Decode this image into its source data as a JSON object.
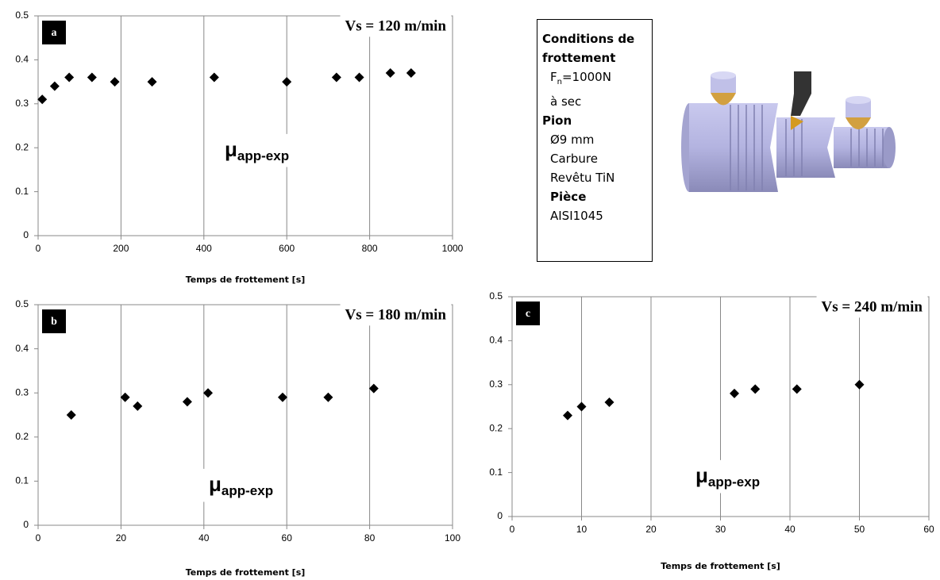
{
  "chart_data": [
    {
      "type": "scatter",
      "panel_label": "a",
      "annotation": "Vs = 120 m/min",
      "mu_symbol": "μ",
      "mu_subscript": "app-exp",
      "x_label": "Temps de frottement [s]",
      "x": [
        10,
        40,
        75,
        130,
        185,
        275,
        425,
        600,
        720,
        775,
        850,
        900
      ],
      "values": [
        0.31,
        0.34,
        0.36,
        0.36,
        0.35,
        0.35,
        0.36,
        0.35,
        0.36,
        0.36,
        0.37,
        0.37
      ],
      "color": "#000000",
      "xlim": [
        0,
        1000
      ],
      "xticks": [
        0,
        200,
        400,
        600,
        800,
        1000
      ],
      "ylim": [
        0,
        0.5
      ],
      "yticks": [
        0,
        0.1,
        0.2,
        0.3,
        0.4,
        0.5
      ],
      "grid": "x"
    },
    {
      "type": "scatter",
      "panel_label": "b",
      "annotation": "Vs = 180 m/min",
      "mu_symbol": "μ",
      "mu_subscript": "app-exp",
      "x_label": "Temps de frottement [s]",
      "x": [
        8,
        21,
        24,
        36,
        41,
        59,
        70,
        81
      ],
      "values": [
        0.25,
        0.29,
        0.27,
        0.28,
        0.3,
        0.29,
        0.29,
        0.31
      ],
      "color": "#000000",
      "xlim": [
        0,
        100
      ],
      "xticks": [
        0,
        20,
        40,
        60,
        80,
        100
      ],
      "ylim": [
        0,
        0.5
      ],
      "yticks": [
        0,
        0.1,
        0.2,
        0.3,
        0.4,
        0.5
      ],
      "grid": "x"
    },
    {
      "type": "scatter",
      "panel_label": "c",
      "annotation": "Vs = 240 m/min",
      "mu_symbol": "μ",
      "mu_subscript": "app-exp",
      "x_label": "Temps de frottement [s]",
      "x": [
        8,
        10,
        14,
        32,
        35,
        41,
        50
      ],
      "values": [
        0.23,
        0.25,
        0.26,
        0.28,
        0.29,
        0.29,
        0.3
      ],
      "color": "#000000",
      "xlim": [
        0,
        60
      ],
      "xticks": [
        0,
        10,
        20,
        30,
        40,
        50,
        60
      ],
      "ylim": [
        0,
        0.5
      ],
      "yticks": [
        0,
        0.1,
        0.2,
        0.3,
        0.4,
        0.5
      ],
      "grid": "x"
    }
  ],
  "conditions": {
    "heading1": "Conditions de frottement",
    "force_symbol": "F",
    "force_subscript": "n",
    "force_value": "=1000N",
    "items1": [
      "à sec"
    ],
    "heading2": "Pion",
    "items2": [
      "Ø9 mm",
      "Carbure",
      "Revêtu TiN"
    ],
    "heading3": "Pièce",
    "items3": [
      "AISI1045"
    ]
  }
}
